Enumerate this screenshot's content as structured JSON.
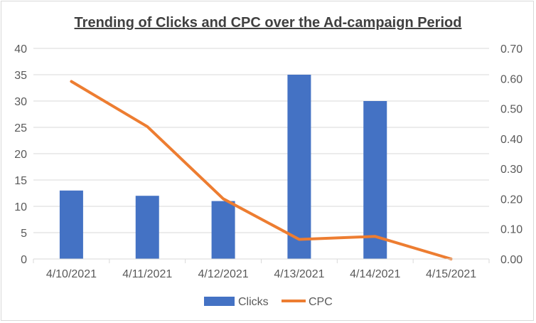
{
  "chart_data": {
    "type": "bar",
    "title": "Trending of Clicks and CPC over the Ad-campaign Period",
    "categories": [
      "4/10/2021",
      "4/11/2021",
      "4/12/2021",
      "4/13/2021",
      "4/14/2021",
      "4/15/2021"
    ],
    "series": [
      {
        "name": "Clicks",
        "type": "bar",
        "axis": "left",
        "color": "#4472c4",
        "values": [
          13,
          12,
          11,
          35,
          30,
          0
        ]
      },
      {
        "name": "CPC",
        "type": "line",
        "axis": "right",
        "color": "#ed7d31",
        "values": [
          0.59,
          0.44,
          0.2,
          0.065,
          0.075,
          0.0
        ]
      }
    ],
    "y_left": {
      "ylim": [
        0,
        40
      ],
      "ticks": [
        "0",
        "5",
        "10",
        "15",
        "20",
        "25",
        "30",
        "35",
        "40"
      ]
    },
    "y_right": {
      "ylim": [
        0,
        0.7
      ],
      "ticks": [
        "0.00",
        "0.10",
        "0.20",
        "0.30",
        "0.40",
        "0.50",
        "0.60",
        "0.70"
      ]
    },
    "grid": true,
    "legend": "bottom-center"
  }
}
